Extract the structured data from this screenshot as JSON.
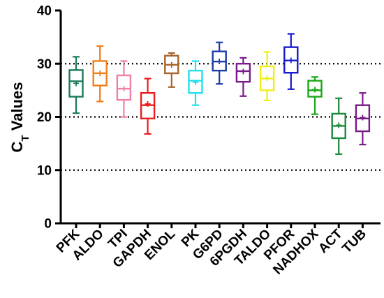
{
  "chart_data": {
    "type": "boxplot",
    "ylabel_main": "C",
    "ylabel_sub": "T",
    "ylabel_rest": " Values",
    "ylim": [
      0,
      40
    ],
    "yticks": [
      0,
      10,
      20,
      30,
      40
    ],
    "gridlines": [
      10,
      20,
      30
    ],
    "grid_style": "dotted",
    "series": [
      {
        "name": "PFK",
        "color": "#1a7a5a",
        "min": 20.7,
        "q1": 23.8,
        "median": 26.7,
        "q3": 28.8,
        "max": 31.3,
        "mean": 26.3
      },
      {
        "name": "ALDO",
        "color": "#f07f1a",
        "min": 22.9,
        "q1": 25.9,
        "median": 28.2,
        "q3": 30.5,
        "max": 33.3,
        "mean": 28.2
      },
      {
        "name": "TPI",
        "color": "#ee7fa8",
        "min": 20.0,
        "q1": 23.2,
        "median": 25.3,
        "q3": 27.8,
        "max": 30.5,
        "mean": 25.3
      },
      {
        "name": "GAPDH",
        "color": "#ee1c1c",
        "min": 16.8,
        "q1": 19.7,
        "median": 22.2,
        "q3": 24.5,
        "max": 27.2,
        "mean": 22.4
      },
      {
        "name": "ENOL",
        "color": "#a6652a",
        "min": 25.6,
        "q1": 28.2,
        "median": 29.8,
        "q3": 31.5,
        "max": 32.0,
        "mean": 29.8
      },
      {
        "name": "PK",
        "color": "#22e0ee",
        "min": 22.2,
        "q1": 24.5,
        "median": 26.8,
        "q3": 28.7,
        "max": 30.5,
        "mean": 26.5
      },
      {
        "name": "G6PD",
        "color": "#1a3aa8",
        "min": 26.2,
        "q1": 28.7,
        "median": 30.4,
        "q3": 32.3,
        "max": 34.0,
        "mean": 30.4
      },
      {
        "name": "6PGDH",
        "color": "#7a1a8a",
        "min": 23.9,
        "q1": 26.6,
        "median": 28.6,
        "q3": 30.0,
        "max": 31.1,
        "mean": 28.5
      },
      {
        "name": "TALDO",
        "color": "#f0ee1a",
        "min": 23.1,
        "q1": 25.0,
        "median": 27.2,
        "q3": 29.5,
        "max": 32.2,
        "mean": 27.3
      },
      {
        "name": "PFOR",
        "color": "#1a1acc",
        "min": 25.2,
        "q1": 28.3,
        "median": 30.6,
        "q3": 33.1,
        "max": 35.6,
        "mean": 30.6
      },
      {
        "name": "NADHOX",
        "color": "#1aa81a",
        "min": 20.5,
        "q1": 23.8,
        "median": 25.0,
        "q3": 26.8,
        "max": 27.5,
        "mean": 25.1
      },
      {
        "name": "ACT",
        "color": "#1a8a3a",
        "min": 13.0,
        "q1": 16.0,
        "median": 18.3,
        "q3": 20.6,
        "max": 23.5,
        "mean": 18.4
      },
      {
        "name": "TUB",
        "color": "#7a1a8a",
        "min": 14.8,
        "q1": 17.3,
        "median": 19.7,
        "q3": 22.2,
        "max": 24.5,
        "mean": 19.9
      }
    ]
  }
}
